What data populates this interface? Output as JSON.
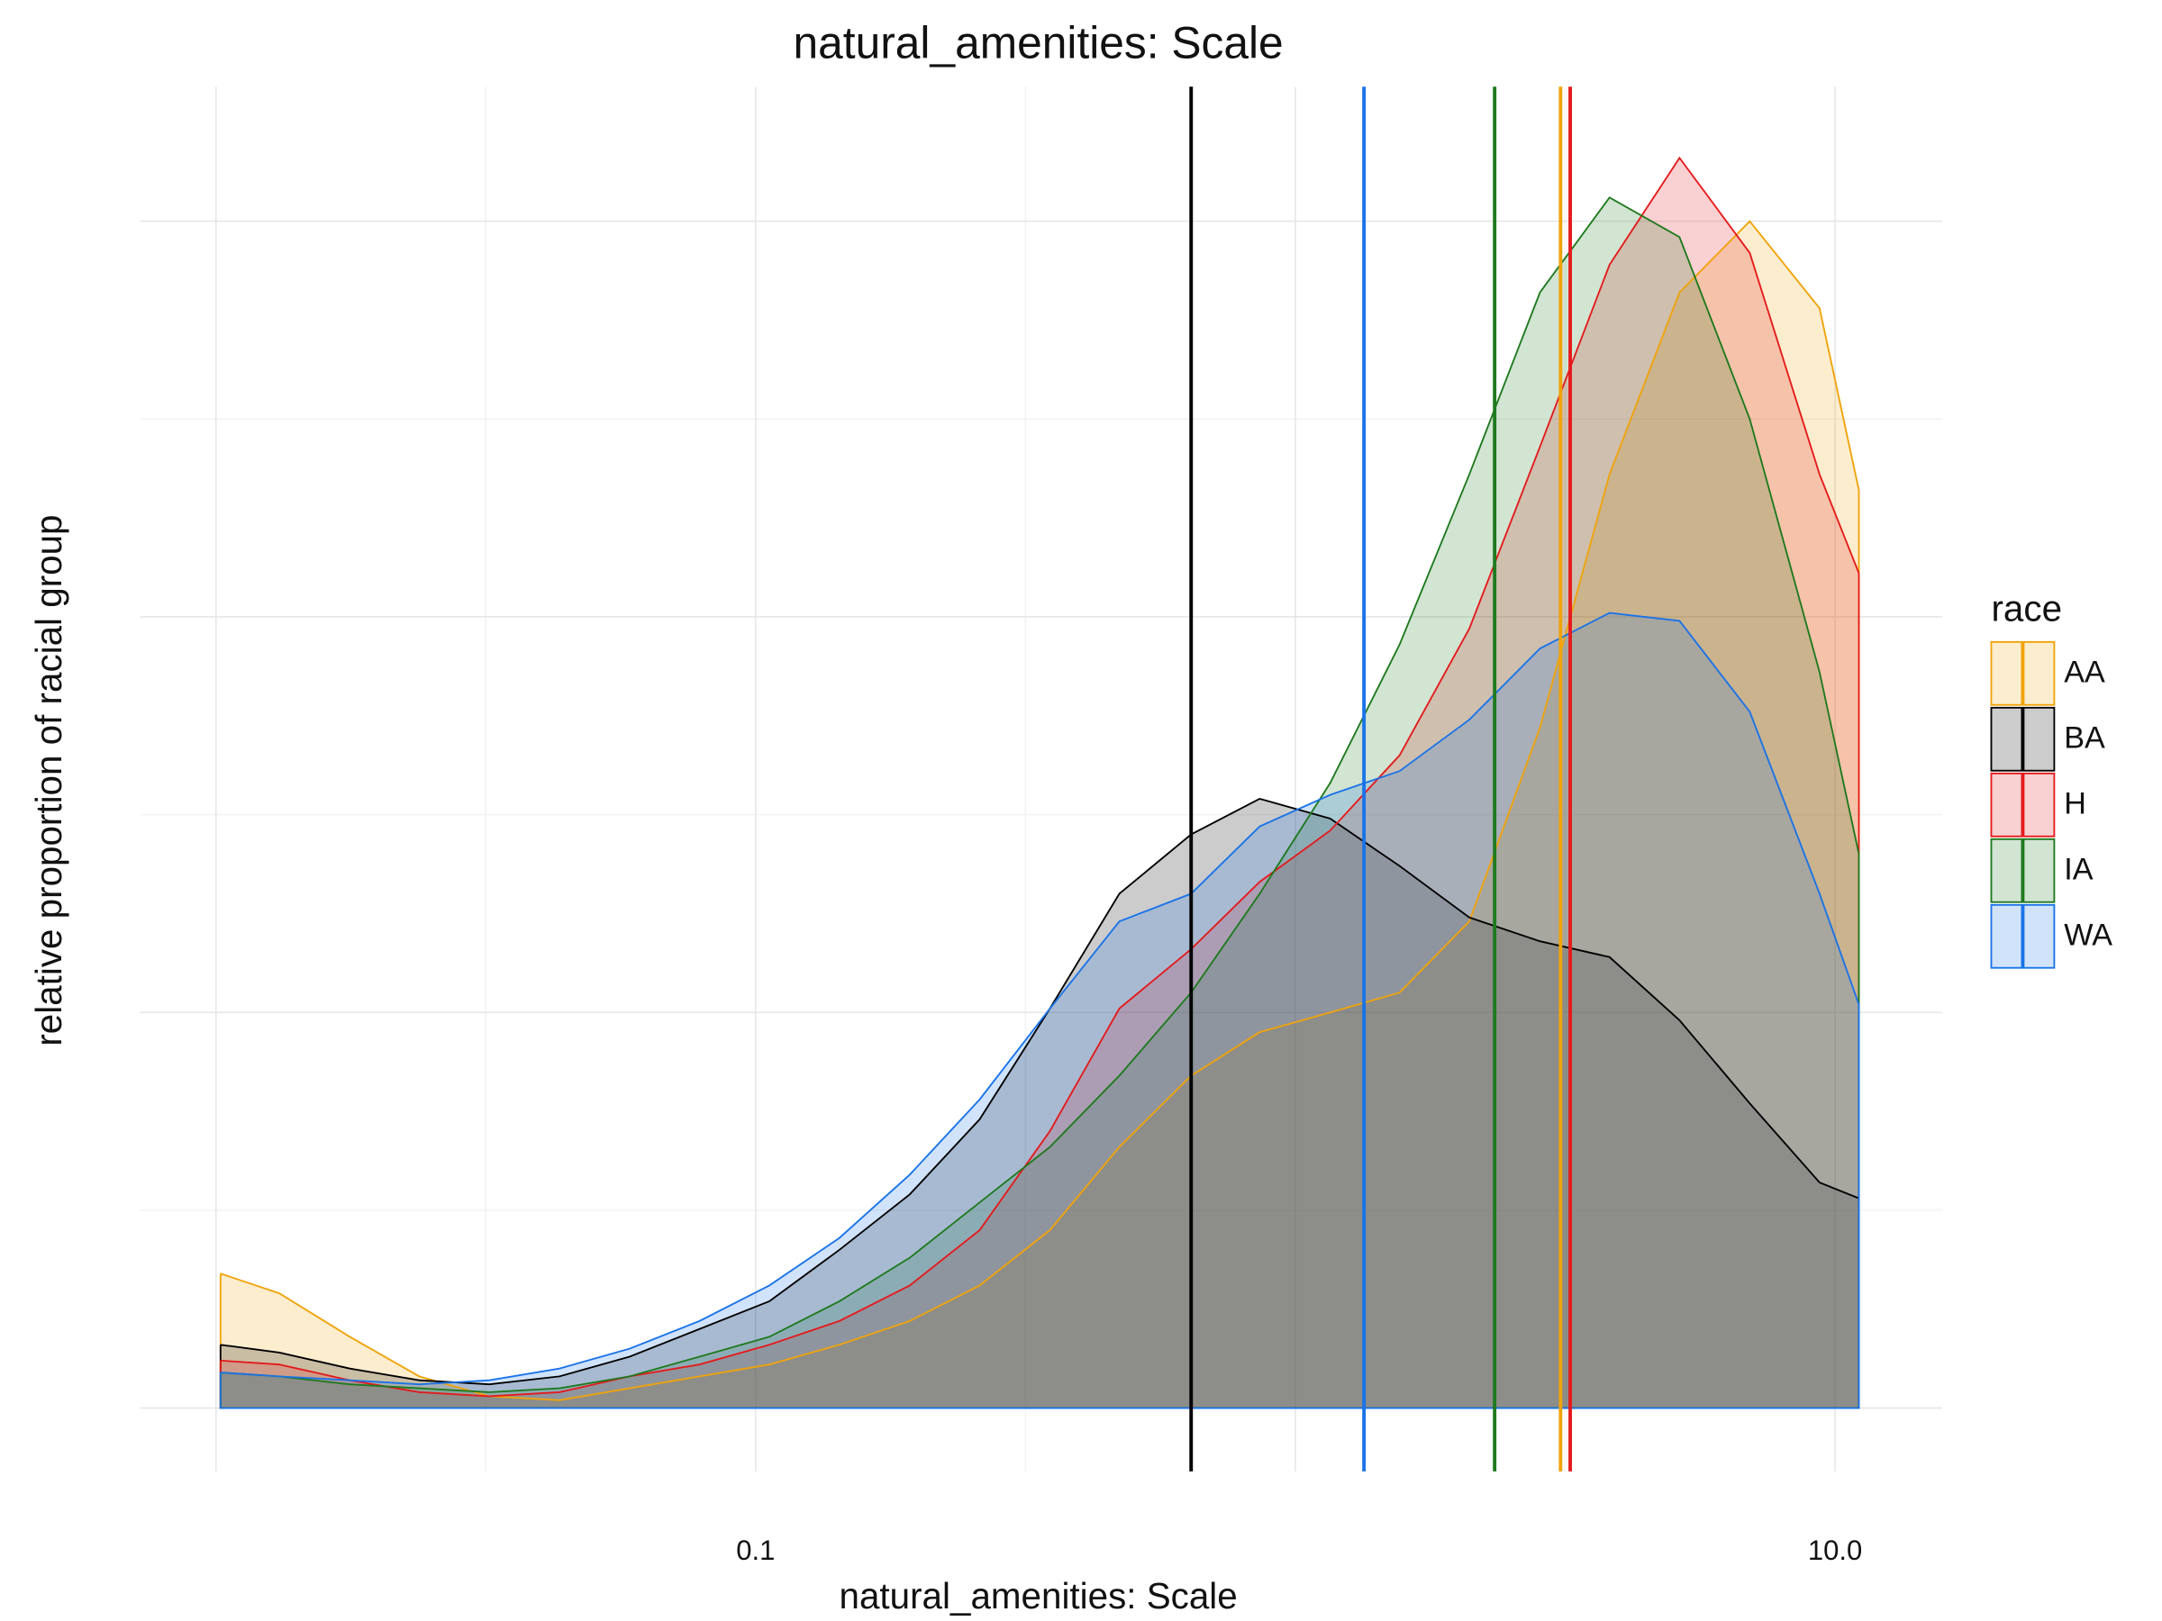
{
  "chart_data": {
    "type": "density",
    "title": "natural_amenities: Scale",
    "x_label": "natural_amenities: Scale",
    "y_label": "relative proportion of racial group",
    "xscale": "log",
    "grid": true,
    "ytick_labels_visible": false,
    "legend_position": "right",
    "legend_title": "race",
    "xlim": [
      0.00723,
      15.8
    ],
    "ylim": [
      -0.16,
      3.34
    ],
    "xticks": [
      {
        "value": 0.01,
        "label": null
      },
      {
        "value": 0.1,
        "label": "0.1"
      },
      {
        "value": 1,
        "label": null
      },
      {
        "value": 10,
        "label": "10.0"
      }
    ],
    "yticks": [
      0,
      1,
      2,
      3
    ],
    "x": [
      0.0102,
      0.0131,
      0.0177,
      0.0238,
      0.0321,
      0.0433,
      0.0584,
      0.0787,
      0.106,
      0.143,
      0.193,
      0.26,
      0.351,
      0.472,
      0.641,
      0.859,
      1.16,
      1.56,
      2.1,
      2.84,
      3.82,
      5.15,
      6.95,
      9.36,
      11.07
    ],
    "series": [
      {
        "name": "AA",
        "color": "#f0a30a",
        "median": 3.1,
        "values": [
          0.34,
          0.29,
          0.18,
          0.08,
          0.03,
          0.02,
          0.05,
          0.08,
          0.11,
          0.16,
          0.22,
          0.31,
          0.45,
          0.66,
          0.84,
          0.95,
          1.0,
          1.05,
          1.23,
          1.72,
          2.36,
          2.82,
          3.0,
          2.78,
          2.32
        ]
      },
      {
        "name": "BA",
        "color": "#000000",
        "median": 0.641,
        "values": [
          0.16,
          0.14,
          0.1,
          0.07,
          0.06,
          0.08,
          0.13,
          0.2,
          0.27,
          0.4,
          0.54,
          0.73,
          1.01,
          1.3,
          1.45,
          1.54,
          1.49,
          1.37,
          1.24,
          1.18,
          1.14,
          0.98,
          0.77,
          0.57,
          0.53
        ]
      },
      {
        "name": "H",
        "color": "#e41a1c",
        "median": 3.23,
        "values": [
          0.12,
          0.11,
          0.07,
          0.04,
          0.03,
          0.04,
          0.08,
          0.11,
          0.16,
          0.22,
          0.31,
          0.45,
          0.7,
          1.01,
          1.16,
          1.33,
          1.46,
          1.65,
          1.97,
          2.43,
          2.89,
          3.16,
          2.92,
          2.36,
          2.11
        ]
      },
      {
        "name": "IA",
        "color": "#1e7a1e",
        "median": 2.34,
        "values": [
          0.09,
          0.08,
          0.06,
          0.05,
          0.04,
          0.05,
          0.08,
          0.13,
          0.18,
          0.27,
          0.38,
          0.52,
          0.66,
          0.84,
          1.05,
          1.3,
          1.58,
          1.93,
          2.36,
          2.82,
          3.06,
          2.96,
          2.5,
          1.86,
          1.4
        ]
      },
      {
        "name": "WA",
        "color": "#1a73e8",
        "median": 1.34,
        "values": [
          0.09,
          0.08,
          0.07,
          0.06,
          0.07,
          0.1,
          0.15,
          0.22,
          0.31,
          0.43,
          0.59,
          0.78,
          1.01,
          1.23,
          1.3,
          1.47,
          1.55,
          1.61,
          1.74,
          1.92,
          2.01,
          1.99,
          1.76,
          1.3,
          1.02
        ]
      }
    ]
  }
}
